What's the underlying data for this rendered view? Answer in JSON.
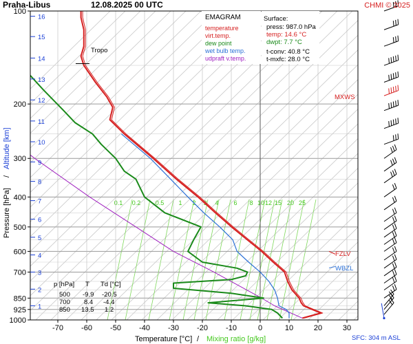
{
  "header": {
    "station": "Praha-Libus",
    "datetime": "12.08.2025 00 UTC",
    "credit": "CHMI © 2025"
  },
  "legend": {
    "title": "EMAGRAM",
    "items": [
      {
        "label": "temperature",
        "color": "#d62020"
      },
      {
        "label": "virt.temp.",
        "color": "#d62020"
      },
      {
        "label": "dew point",
        "color": "#1a8a1a"
      },
      {
        "label": "wet bulb temp.",
        "color": "#2a6fd6"
      },
      {
        "label": "udpraft v.temp.",
        "color": "#a020c0"
      }
    ]
  },
  "surface": {
    "title": "Surface:",
    "lines": [
      {
        "text": "press: 987.0 hPa",
        "color": "#000000"
      },
      {
        "text": "temp: 14.6 °C",
        "color": "#d62020"
      },
      {
        "text": "dwpt: 7.7 °C",
        "color": "#1a8a1a"
      },
      {
        "text": "t-conv: 40.8 °C",
        "color": "#000000"
      },
      {
        "text": "t-mxfc: 28.0 °C",
        "color": "#000000"
      }
    ]
  },
  "table": {
    "headers": [
      "p [hPa]",
      "T",
      "Td [°C]"
    ],
    "rows": [
      [
        "500",
        "-9.9",
        "-20.5"
      ],
      [
        "700",
        "8.4",
        "-4.4"
      ],
      [
        "850",
        "13.5",
        "1.2"
      ]
    ]
  },
  "axes": {
    "ylabel_pressure": "Pressure [hPa]",
    "ylabel_sep": "/",
    "ylabel_altitude": "Altitude [km]",
    "xlabel_temp": "Temperature [°C]",
    "xlabel_sep": "/",
    "xlabel_mixing": "Mixing ratio [g/kg]",
    "pressure_ticks": [
      "100",
      "200",
      "300",
      "400",
      "500",
      "600",
      "700",
      "850",
      "925",
      "1000"
    ],
    "temp_ticks": [
      "-70",
      "-60",
      "-50",
      "-40",
      "-30",
      "-20",
      "-10",
      "0",
      "10",
      "20",
      "30"
    ],
    "altitude_ticks": [
      "1",
      "2",
      "3",
      "4",
      "5",
      "6",
      "7",
      "8",
      "9",
      "10",
      "11",
      "12",
      "13",
      "14",
      "15",
      "16"
    ],
    "mixing_labels": [
      "0.1",
      "0.2",
      "0.5",
      "1",
      "2",
      "3",
      "4",
      "6",
      "8",
      "10",
      "12",
      "15",
      "20",
      "25"
    ]
  },
  "annotations": {
    "tropo": "Tropo",
    "mxws": "MXWS",
    "fzlv": "FZLV",
    "wbzl": "WBZL",
    "sfc": "SFC: 304 m ASL"
  },
  "colors": {
    "temperature": "#d62020",
    "dewpoint": "#1a8a1a",
    "wetbulb": "#2a6fd6",
    "parcel": "#a020c0",
    "mixing": "#7ed85a",
    "isobar": "#999999",
    "adiabat": "#c8c8c8",
    "altitude": "#1a3fd6"
  },
  "chart_data": {
    "type": "emagram",
    "title": "EMAGRAM",
    "xlabel": "Temperature [°C]",
    "ylabel": "Pressure [hPa]",
    "xlim": [
      -80,
      30
    ],
    "ylim_pressure": [
      1000,
      100
    ],
    "temperature": [
      [
        987,
        14.6
      ],
      [
        950,
        21.0
      ],
      [
        925,
        18.0
      ],
      [
        900,
        15.0
      ],
      [
        880,
        14.2
      ],
      [
        850,
        13.5
      ],
      [
        800,
        11.0
      ],
      [
        750,
        9.5
      ],
      [
        700,
        8.4
      ],
      [
        650,
        4.5
      ],
      [
        600,
        0.5
      ],
      [
        550,
        -4.5
      ],
      [
        500,
        -9.9
      ],
      [
        450,
        -15.5
      ],
      [
        400,
        -21.5
      ],
      [
        350,
        -29.0
      ],
      [
        300,
        -37.0
      ],
      [
        250,
        -47.0
      ],
      [
        225,
        -52.0
      ],
      [
        205,
        -51.0
      ],
      [
        190,
        -53.0
      ],
      [
        170,
        -57.0
      ],
      [
        150,
        -61.0
      ],
      [
        140,
        -62.0
      ],
      [
        130,
        -61.0
      ],
      [
        115,
        -61.0
      ],
      [
        105,
        -62.0
      ],
      [
        100,
        -62.0
      ]
    ],
    "dewpoint": [
      [
        987,
        7.7
      ],
      [
        950,
        6.0
      ],
      [
        925,
        4.0
      ],
      [
        900,
        -5.0
      ],
      [
        880,
        -18.0
      ],
      [
        850,
        1.2
      ],
      [
        820,
        -10.0
      ],
      [
        790,
        -30.0
      ],
      [
        760,
        -30.0
      ],
      [
        740,
        -10.0
      ],
      [
        720,
        -5.0
      ],
      [
        700,
        -4.4
      ],
      [
        680,
        -8.0
      ],
      [
        650,
        -20.0
      ],
      [
        600,
        -25.0
      ],
      [
        550,
        -23.0
      ],
      [
        500,
        -20.5
      ],
      [
        450,
        -33.0
      ],
      [
        400,
        -40.0
      ],
      [
        350,
        -43.0
      ],
      [
        330,
        -47.0
      ],
      [
        300,
        -50.0
      ],
      [
        270,
        -55.0
      ],
      [
        250,
        -58.0
      ],
      [
        230,
        -64.0
      ],
      [
        210,
        -68.0
      ],
      [
        180,
        -75.0
      ],
      [
        160,
        -80.0
      ]
    ],
    "wet_bulb": [
      [
        987,
        10.0
      ],
      [
        950,
        10.0
      ],
      [
        925,
        9.0
      ],
      [
        900,
        6.5
      ],
      [
        850,
        6.0
      ],
      [
        800,
        5.0
      ],
      [
        750,
        3.0
      ],
      [
        700,
        0.0
      ],
      [
        650,
        -4.0
      ],
      [
        600,
        -8.0
      ],
      [
        550,
        -9.5
      ],
      [
        500,
        -14.0
      ],
      [
        450,
        -19.5
      ],
      [
        400,
        -25.0
      ],
      [
        350,
        -31.0
      ],
      [
        300,
        -38.0
      ],
      [
        250,
        -48.0
      ]
    ],
    "parcel_virtual": [
      [
        987,
        14.6
      ],
      [
        900,
        5.0
      ],
      [
        850,
        0.5
      ],
      [
        700,
        -16.0
      ],
      [
        600,
        -30.0
      ],
      [
        500,
        -43.0
      ],
      [
        400,
        -59.0
      ],
      [
        300,
        -78.0
      ],
      [
        250,
        -89.0
      ]
    ],
    "markers": {
      "tropopause_hpa": 148,
      "max_wind_hpa": 188,
      "freezing_level_hpa": 600,
      "wet_bulb_zero_hpa": 700
    },
    "surface_height_m": 304,
    "wind_levels_hpa": [
      100,
      115,
      130,
      150,
      170,
      188,
      210,
      240,
      270,
      300,
      330,
      360,
      400,
      440,
      480,
      510,
      540,
      570,
      600,
      640,
      680,
      720,
      760,
      800,
      850,
      900,
      925,
      960,
      987
    ],
    "table": {
      "p": [
        500,
        700,
        850
      ],
      "T": [
        -9.9,
        8.4,
        13.5
      ],
      "Td": [
        -20.5,
        -4.4,
        1.2
      ]
    }
  }
}
